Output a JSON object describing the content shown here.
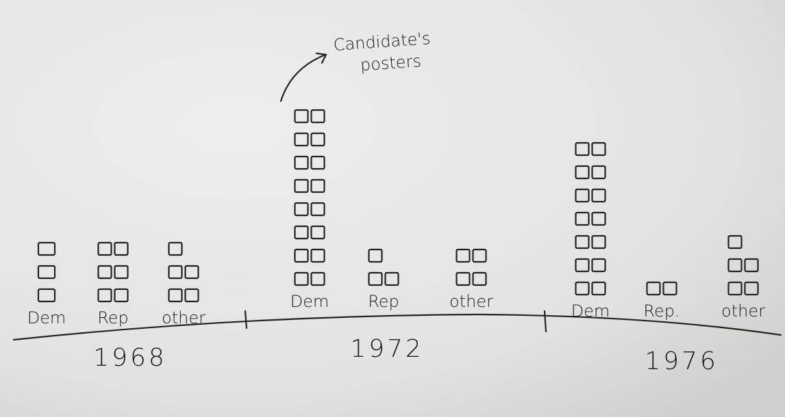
{
  "chart_data": {
    "type": "pictograph",
    "annotation": "Candidate's posters",
    "groups": [
      {
        "year": "1968",
        "bars": [
          {
            "label": "Dem",
            "value": 3
          },
          {
            "label": "Rep",
            "value": 6
          },
          {
            "label": "other",
            "value": 5
          }
        ]
      },
      {
        "year": "1972",
        "bars": [
          {
            "label": "Dem",
            "value": 16
          },
          {
            "label": "Rep",
            "value": 3
          },
          {
            "label": "other",
            "value": 4
          }
        ]
      },
      {
        "year": "1976",
        "bars": [
          {
            "label": "Dem",
            "value": 14
          },
          {
            "label": "Rep.",
            "value": 2
          },
          {
            "label": "other",
            "value": 5
          }
        ]
      }
    ]
  }
}
